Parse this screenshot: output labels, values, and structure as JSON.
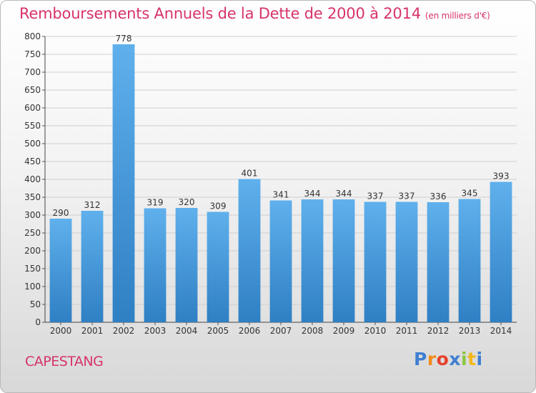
{
  "chart_data": {
    "type": "bar",
    "title": "Remboursements Annuels de la Dette de 2000 à 2014",
    "subtitle": "(en milliers d'€)",
    "categories": [
      "2000",
      "2001",
      "2002",
      "2003",
      "2004",
      "2005",
      "2006",
      "2007",
      "2008",
      "2009",
      "2010",
      "2011",
      "2012",
      "2013",
      "2014"
    ],
    "values": [
      290,
      312,
      778,
      319,
      320,
      309,
      401,
      341,
      344,
      344,
      337,
      337,
      336,
      345,
      393
    ],
    "ylim": [
      0,
      800
    ],
    "yticks": [
      0,
      50,
      100,
      150,
      200,
      250,
      300,
      350,
      400,
      450,
      500,
      550,
      600,
      650,
      700,
      750,
      800
    ],
    "grid": true,
    "bar_color": "#4a9fe0"
  },
  "commune": "CAPESTANG",
  "brand": {
    "letters": [
      "P",
      "r",
      "o",
      "x",
      "i",
      "t",
      "i"
    ],
    "colors": [
      "#3f7fd1",
      "#f28c1b",
      "#e8412b",
      "#3f7fd1",
      "#8bc53f",
      "#f2b81b",
      "#3f7fd1"
    ]
  }
}
